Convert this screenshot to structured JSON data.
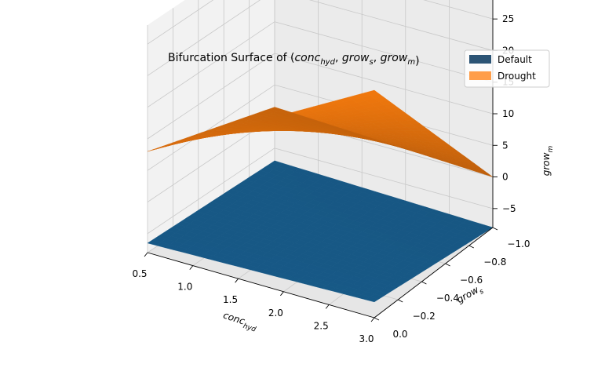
{
  "chart_data": {
    "type": "surface3d",
    "title_prefix": "Bifurcation Surface of (",
    "title_vars": [
      {
        "base": "conc",
        "sub": "hyd"
      },
      {
        "base": "grow",
        "sub": "s"
      },
      {
        "base": "grow",
        "sub": "m"
      }
    ],
    "title_suffix": ")",
    "xlabel": {
      "base": "conc",
      "sub": "hyd"
    },
    "ylabel": {
      "base": "grow",
      "sub": "s"
    },
    "zlabel": {
      "base": "grow",
      "sub": "m"
    },
    "xlim": [
      0.5,
      3.0
    ],
    "ylim": [
      -1.0,
      0.0
    ],
    "zlim": [
      -8,
      28
    ],
    "x_ticks": [
      "0.5",
      "1.0",
      "1.5",
      "2.0",
      "2.5",
      "3.0"
    ],
    "y_ticks": [
      "−1.0",
      "−0.8",
      "−0.6",
      "−0.4",
      "−0.2",
      "0.0"
    ],
    "z_ticks": [
      "−5",
      "0",
      "5",
      "10",
      "15",
      "20",
      "25"
    ],
    "grid": true,
    "legend_position": "top-right",
    "series": [
      {
        "name": "Default",
        "legend_color": "#2c5475",
        "color": "#1f77b4",
        "corners": {
          "x0.5_y-1": -7.0,
          "x0.5_y0": -6.5,
          "x3_y-1": -8.0,
          "x3_y0": -5.5
        }
      },
      {
        "name": "Drought",
        "legend_color": "#ff9e4a",
        "color": "#ff7f0e",
        "corners": {
          "x0.5_y-1": 1.5,
          "x0.5_y0": 8.0,
          "x3_y-1": 0.0,
          "x3_y0": 28.0
        }
      }
    ]
  }
}
